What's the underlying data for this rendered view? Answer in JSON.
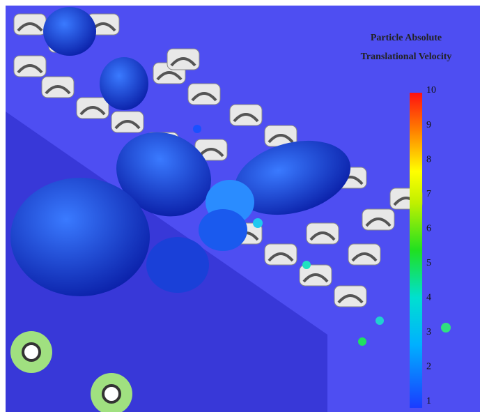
{
  "legend": {
    "title": [
      "Particle Absolute",
      "Translational Velocity"
    ],
    "ticks": [
      "10",
      "9",
      "8",
      "7",
      "6",
      "5",
      "4",
      "3",
      "2",
      "1"
    ]
  }
}
